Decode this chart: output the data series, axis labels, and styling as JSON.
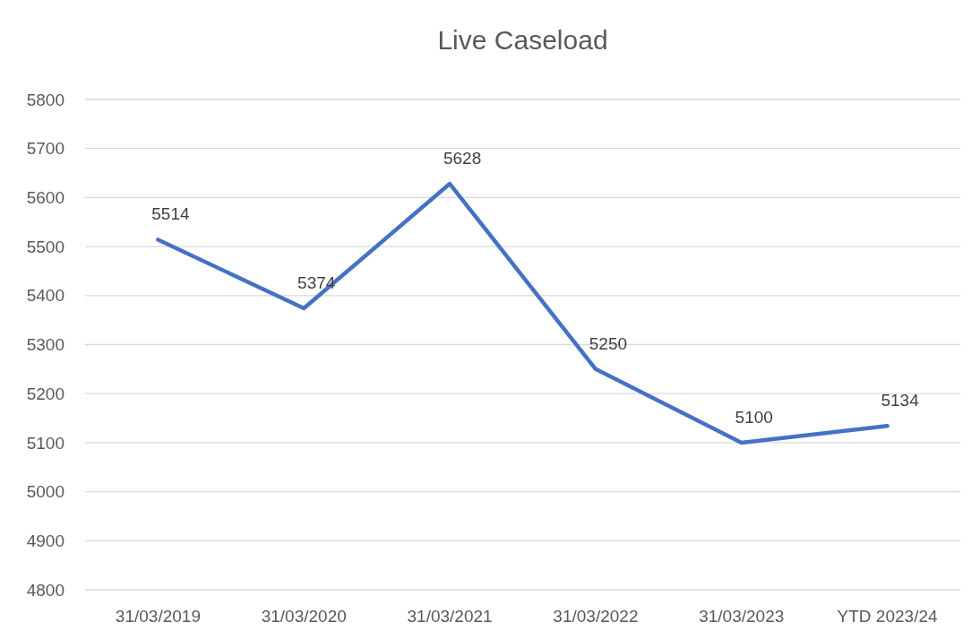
{
  "chart_data": {
    "type": "line",
    "title": "Live Caseload",
    "categories": [
      "31/03/2019",
      "31/03/2020",
      "31/03/2021",
      "31/03/2022",
      "31/03/2023",
      "YTD 2023/24"
    ],
    "series": [
      {
        "color": "#4472c4",
        "values": [
          5514,
          5374,
          5628,
          5250,
          5100,
          5134
        ]
      }
    ],
    "ylim": [
      4800,
      5800
    ],
    "yticks": [
      4800,
      4900,
      5000,
      5100,
      5200,
      5300,
      5400,
      5500,
      5600,
      5700,
      5800
    ],
    "grid": "y",
    "data_labels": true,
    "marker": "none",
    "line_style": "solid"
  }
}
